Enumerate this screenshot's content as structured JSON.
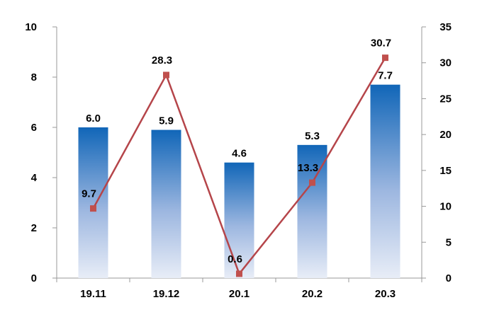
{
  "chart_data": {
    "type": "bar",
    "categories": [
      "19.11",
      "19.12",
      "20.1",
      "20.2",
      "20.3"
    ],
    "series": [
      {
        "type": "bar",
        "axis": "left",
        "values": [
          6.0,
          5.9,
          4.6,
          5.3,
          7.7
        ],
        "labels": [
          "6.0",
          "5.9",
          "4.6",
          "5.3",
          "7.7"
        ]
      },
      {
        "type": "line",
        "axis": "right",
        "values": [
          9.7,
          28.3,
          0.6,
          13.3,
          30.7
        ],
        "labels": [
          "9.7",
          "28.3",
          "0.6",
          "13.3",
          "30.7"
        ]
      }
    ],
    "y_left": {
      "ylim": [
        0,
        10
      ],
      "ticks": [
        "0",
        "2",
        "4",
        "6",
        "8",
        "10"
      ]
    },
    "y_right": {
      "ylim": [
        0,
        35
      ],
      "ticks": [
        "0",
        "5",
        "10",
        "15",
        "20",
        "25",
        "30",
        "35"
      ]
    },
    "grid": false,
    "legend": "none",
    "colors": {
      "bar_top": "#1166b8",
      "bar_bottom": "#e8edf7",
      "line": "#b5454a",
      "marker": "#c0504d",
      "axis": "#999999"
    }
  }
}
